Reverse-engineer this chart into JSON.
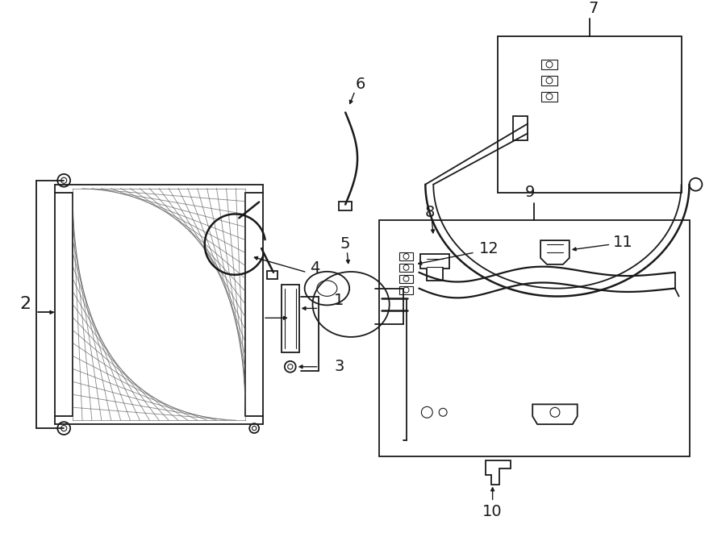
{
  "bg_color": "#ffffff",
  "line_color": "#1a1a1a",
  "fig_width": 9.0,
  "fig_height": 6.61,
  "dpi": 100,
  "lw": 1.3,
  "label_fs": 12
}
